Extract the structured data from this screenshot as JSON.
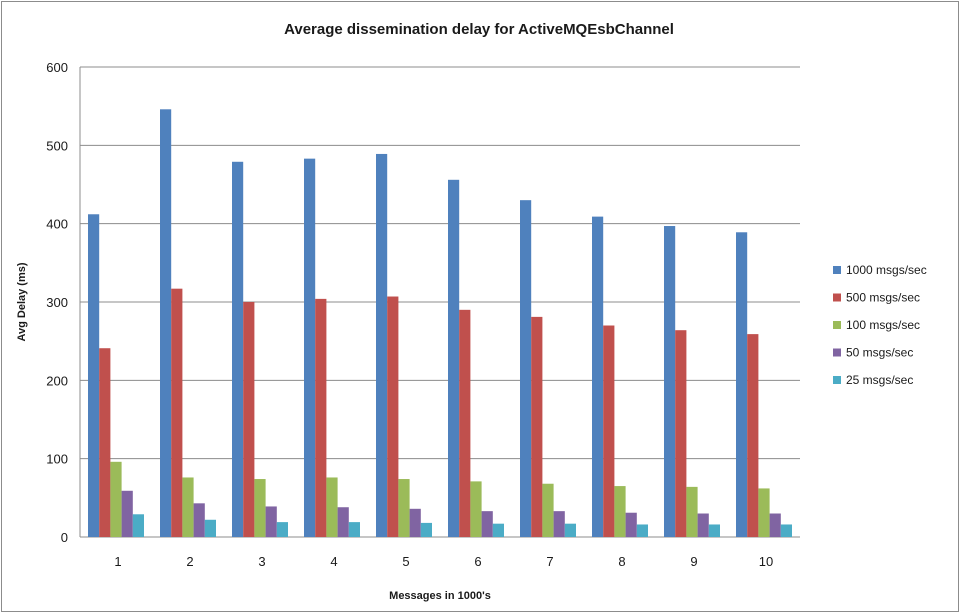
{
  "chart_data": {
    "type": "bar",
    "title": "Average dissemination  delay for ActiveMQEsbChannel",
    "xlabel": "Messages in 1000's",
    "ylabel": "Avg Delay (ms)",
    "ylim": [
      0,
      600
    ],
    "yticks": [
      0,
      100,
      200,
      300,
      400,
      500,
      600
    ],
    "grid": true,
    "legend_position": "right",
    "categories": [
      "1",
      "2",
      "3",
      "4",
      "5",
      "6",
      "7",
      "8",
      "9",
      "10"
    ],
    "series": [
      {
        "name": "1000 msgs/sec",
        "color": "#4f81bd",
        "values": [
          412,
          546,
          479,
          483,
          489,
          456,
          430,
          409,
          397,
          389
        ]
      },
      {
        "name": "500 msgs/sec",
        "color": "#c0504d",
        "values": [
          241,
          317,
          300,
          304,
          307,
          290,
          281,
          270,
          264,
          259
        ]
      },
      {
        "name": "100 msgs/sec",
        "color": "#9bbb59",
        "values": [
          96,
          76,
          74,
          76,
          74,
          71,
          68,
          65,
          64,
          62
        ]
      },
      {
        "name": "50 msgs/sec",
        "color": "#8064a2",
        "values": [
          59,
          43,
          39,
          38,
          36,
          33,
          33,
          31,
          30,
          30
        ]
      },
      {
        "name": "25 msgs/sec",
        "color": "#4bacc6",
        "values": [
          29,
          22,
          19,
          19,
          18,
          17,
          17,
          16,
          16,
          16
        ]
      }
    ]
  }
}
